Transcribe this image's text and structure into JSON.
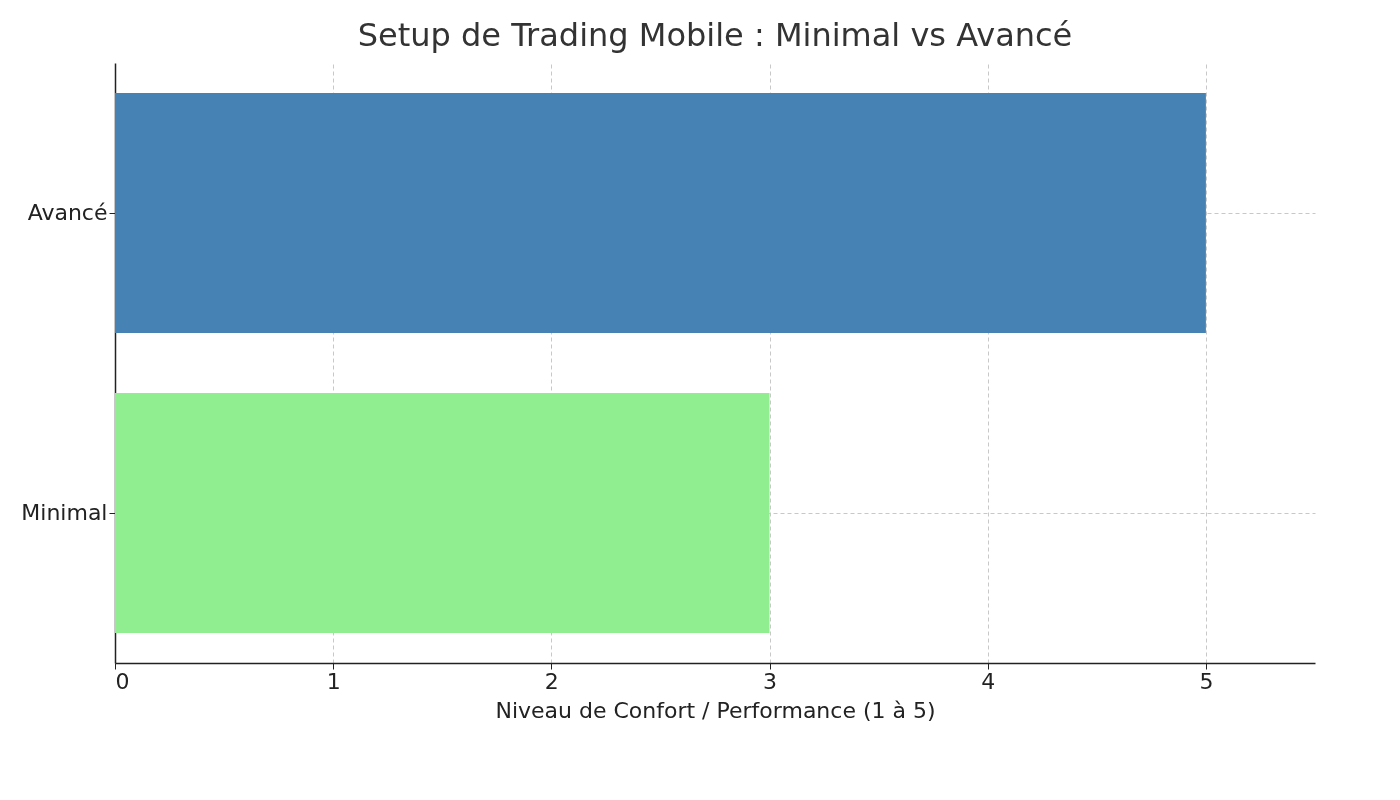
{
  "chart_data": {
    "type": "bar",
    "orientation": "horizontal",
    "title": "Setup de Trading Mobile : Minimal vs Avancé",
    "xlabel": "Niveau de Confort / Performance (1 à 5)",
    "categories": [
      "Avancé",
      "Minimal"
    ],
    "values": [
      5,
      3
    ],
    "colors": [
      "#4682b4",
      "#90ee90"
    ],
    "xlim": [
      0,
      5.5
    ],
    "xticks": [
      0,
      1,
      2,
      3,
      4,
      5
    ],
    "grid": true,
    "line_style": "dashed"
  }
}
